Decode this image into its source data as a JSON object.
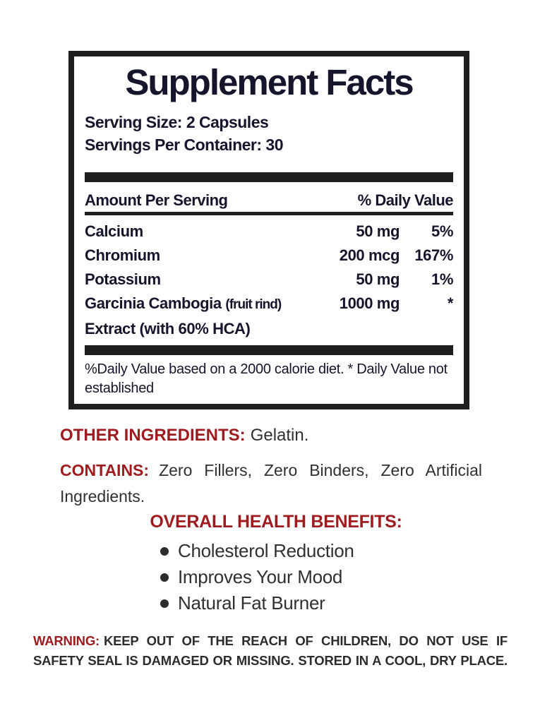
{
  "colors": {
    "ink": "#15152b",
    "rule_black": "#211e22",
    "accent_red": "#9e1b1f",
    "body_gray": "#303032"
  },
  "facts": {
    "title": "Supplement Facts",
    "serving_size": "Serving Size: 2 Capsules",
    "servings_per_container": "Servings Per Container: 30",
    "header": {
      "amount_label": "Amount Per Serving",
      "daily_value_label": "% Daily Value"
    },
    "rows": [
      {
        "name": "Calcium",
        "amount": "50 mg",
        "dv": "5%"
      },
      {
        "name": "Chromium",
        "amount": "200 mcg",
        "dv": "167%"
      },
      {
        "name": "Potassium",
        "amount": "50 mg",
        "dv": "1%"
      },
      {
        "name": "Garcinia Cambogia",
        "name_note": "(fruit rind)",
        "name_line2": "Extract (with 60% HCA)",
        "amount": "1000 mg",
        "dv": "*"
      }
    ],
    "footnote": "%Daily Value based on a 2000 calorie diet. * Daily Value not established"
  },
  "other_ingredients": {
    "label": "OTHER INGREDIENTS:",
    "value": "Gelatin."
  },
  "contains": {
    "label": "CONTAINS:",
    "value": "Zero Fillers, Zero Binders, Zero Artificial Ingredients."
  },
  "benefits": {
    "heading": "OVERALL HEALTH BENEFITS:",
    "items": [
      "Cholesterol Reduction",
      "Improves Your Mood",
      "Natural Fat Burner"
    ]
  },
  "warning": {
    "label": "WARNING:",
    "text": "KEEP OUT OF THE REACH OF CHILDREN, DO NOT USE IF SAFETY SEAL IS DAMAGED OR MISSING. STORED IN A COOL, DRY PLACE."
  }
}
